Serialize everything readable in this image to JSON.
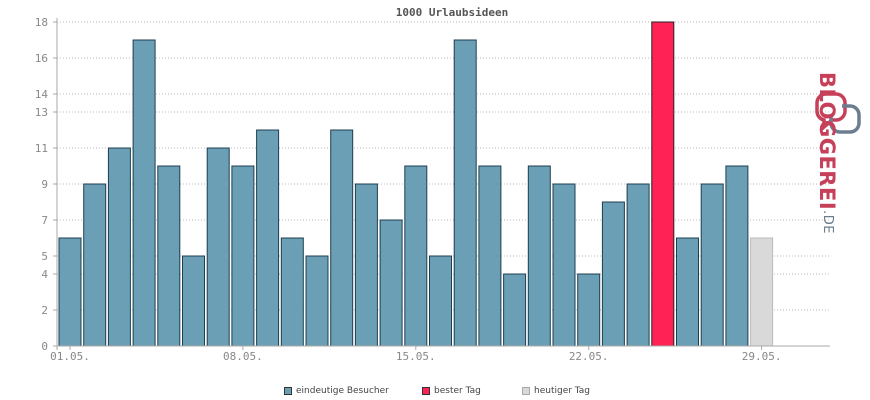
{
  "chart_data": {
    "type": "bar",
    "title": "1000 Urlaubsideen",
    "xlabel": "",
    "ylabel": "",
    "y_ticks": [
      0,
      2,
      4,
      5,
      7,
      9,
      11,
      13,
      14,
      16,
      18
    ],
    "ylim": [
      0,
      18
    ],
    "x_tick_labels": [
      {
        "label": "01.05.",
        "index": 0
      },
      {
        "label": "08.05.",
        "index": 7
      },
      {
        "label": "15.05.",
        "index": 14
      },
      {
        "label": "22.05.",
        "index": 21
      },
      {
        "label": "29.05.",
        "index": 28
      }
    ],
    "days": [
      "01.05.",
      "02.05.",
      "03.05.",
      "04.05.",
      "05.05.",
      "06.05.",
      "07.05.",
      "08.05.",
      "09.05.",
      "10.05.",
      "11.05.",
      "12.05.",
      "13.05.",
      "14.05.",
      "15.05.",
      "16.05.",
      "17.05.",
      "18.05.",
      "19.05.",
      "20.05.",
      "21.05.",
      "22.05.",
      "23.05.",
      "24.05.",
      "25.05.",
      "26.05.",
      "27.05.",
      "28.05.",
      "29.05."
    ],
    "values": [
      6,
      9,
      11,
      17,
      10,
      5,
      11,
      10,
      12,
      6,
      5,
      12,
      9,
      7,
      10,
      5,
      17,
      10,
      4,
      10,
      9,
      4,
      8,
      9,
      18,
      6,
      9,
      10,
      6
    ],
    "bar_types": [
      "normal",
      "normal",
      "normal",
      "normal",
      "normal",
      "normal",
      "normal",
      "normal",
      "normal",
      "normal",
      "normal",
      "normal",
      "normal",
      "normal",
      "normal",
      "normal",
      "normal",
      "normal",
      "normal",
      "normal",
      "normal",
      "normal",
      "normal",
      "normal",
      "best",
      "normal",
      "normal",
      "normal",
      "today"
    ],
    "grid": true,
    "legend_position": "bottom-center",
    "legend": [
      {
        "key": "normal",
        "label": "eindeutige Besucher",
        "color": "#6a9fb5"
      },
      {
        "key": "best",
        "label": "bester Tag",
        "color": "#ff2255"
      },
      {
        "key": "today",
        "label": "heutiger Tag",
        "color": "#d9d9d9"
      }
    ]
  },
  "logo": {
    "text": "BLOGGEREI",
    "suffix": ".DE",
    "colors": {
      "primary": "#c7405a",
      "secondary": "#6b7d8f"
    }
  }
}
